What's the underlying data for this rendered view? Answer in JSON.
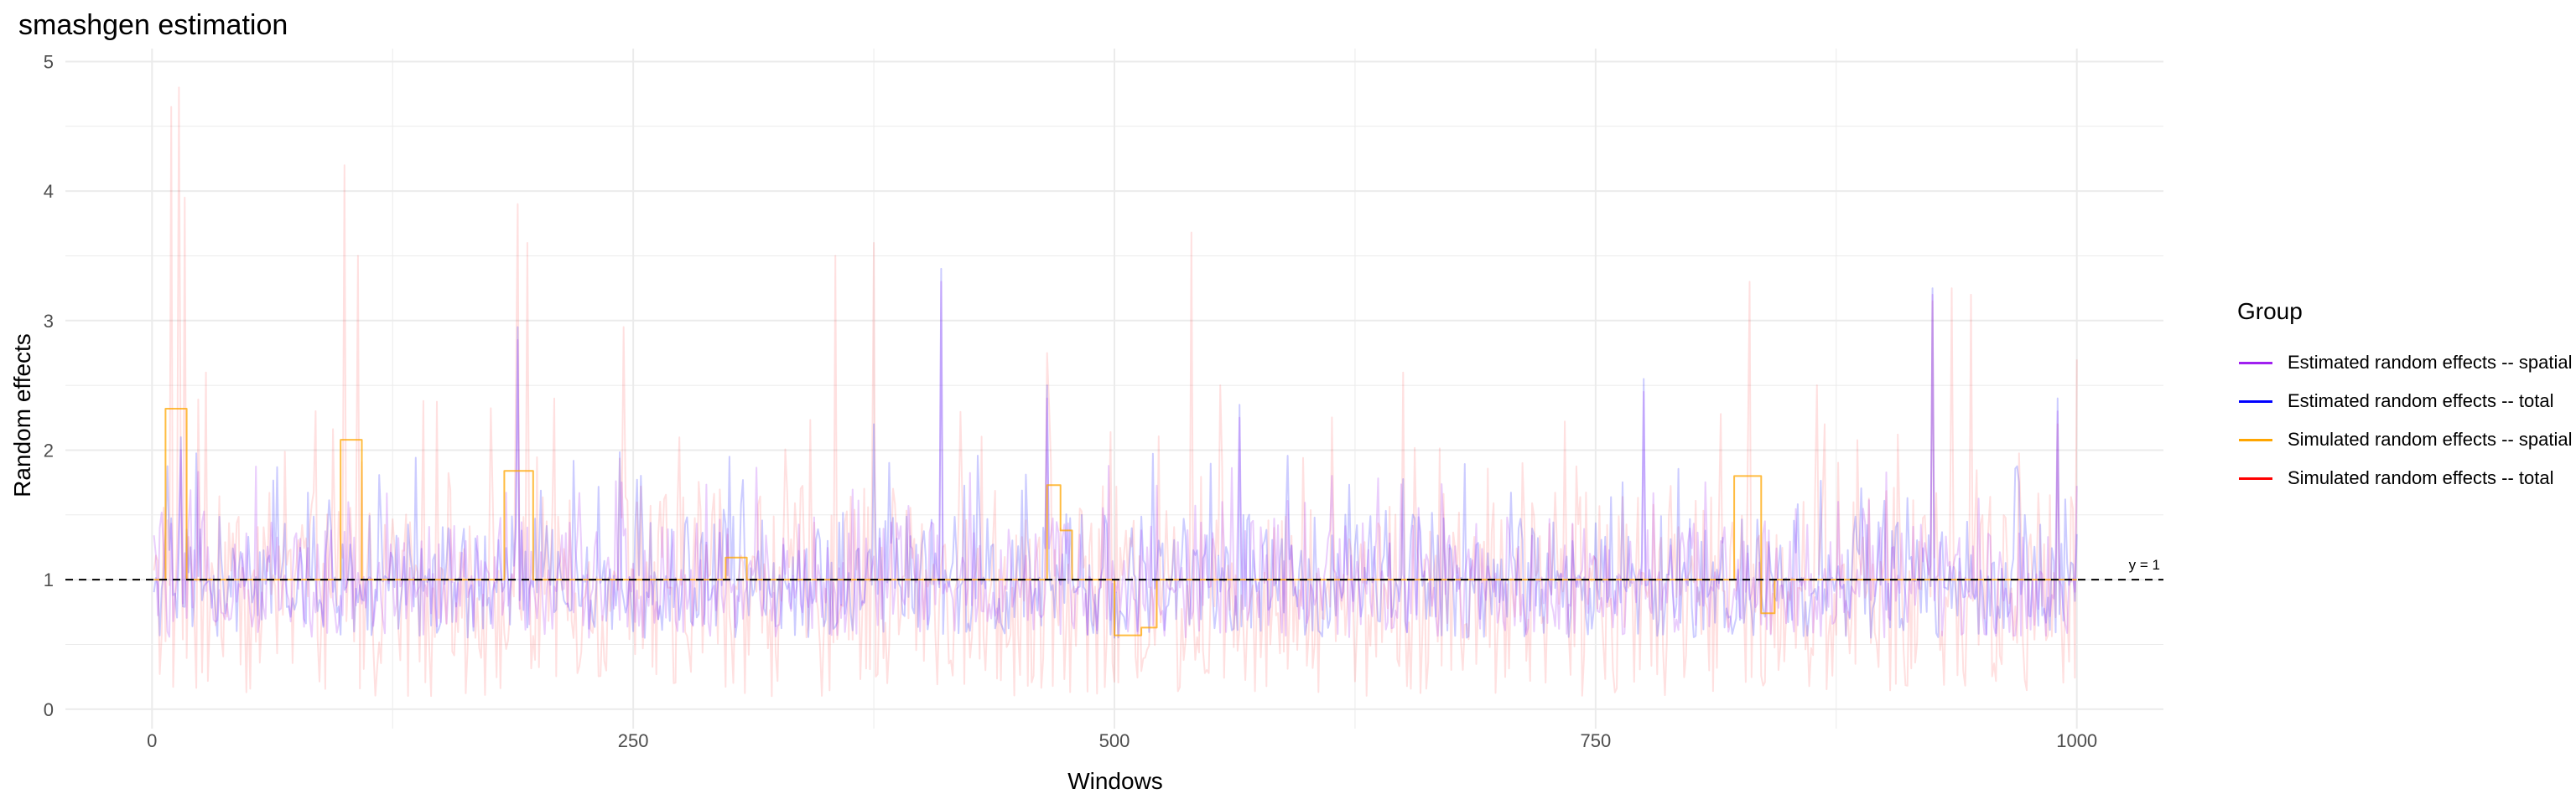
{
  "chart_data": {
    "type": "line",
    "title": "smashgen estimation",
    "xlabel": "Windows",
    "ylabel": "Random effects",
    "xlim": [
      -45,
      1045
    ],
    "ylim": [
      -0.15,
      5.1
    ],
    "x_ticks": [
      0,
      250,
      500,
      750,
      1000
    ],
    "y_ticks": [
      0,
      1,
      2,
      3,
      4,
      5
    ],
    "grid": true,
    "legend": {
      "title": "Group",
      "position": "right"
    },
    "reference_line": {
      "y": 1,
      "label": "y = 1",
      "style": "dashed",
      "color": "#000000"
    },
    "n_windows": 1000,
    "series": [
      {
        "name": "Simulated random effects -- total",
        "color": "#FF0000",
        "opacity": 0.12,
        "spikes": [
          [
            10,
            4.65
          ],
          [
            14,
            4.8
          ],
          [
            17,
            3.95
          ],
          [
            28,
            2.6
          ],
          [
            100,
            4.2
          ],
          [
            107,
            3.5
          ],
          [
            190,
            3.9
          ],
          [
            195,
            3.6
          ],
          [
            245,
            2.95
          ],
          [
            355,
            3.5
          ],
          [
            375,
            3.6
          ],
          [
            465,
            2.75
          ],
          [
            540,
            3.68
          ],
          [
            555,
            2.5
          ],
          [
            650,
            2.6
          ],
          [
            830,
            3.3
          ],
          [
            865,
            2.5
          ],
          [
            925,
            3.15
          ],
          [
            935,
            3.25
          ],
          [
            945,
            3.2
          ],
          [
            990,
            2.2
          ],
          [
            1000,
            2.7
          ]
        ],
        "typical_range": [
          0.1,
          2.4
        ]
      },
      {
        "name": "Estimated random effects -- total",
        "color": "#0000FF",
        "opacity": 0.2,
        "spikes": [
          [
            15,
            2.1
          ],
          [
            190,
            2.95
          ],
          [
            300,
            1.95
          ],
          [
            375,
            2.2
          ],
          [
            410,
            3.4
          ],
          [
            465,
            2.5
          ],
          [
            565,
            2.35
          ],
          [
            775,
            2.55
          ],
          [
            925,
            3.25
          ],
          [
            990,
            2.4
          ]
        ],
        "typical_range": [
          0.55,
          2.0
        ]
      },
      {
        "name": "Estimated random effects -- spatial",
        "color": "#A020F0",
        "opacity": 0.22,
        "spikes": [
          [
            15,
            2.0
          ],
          [
            190,
            2.85
          ],
          [
            410,
            3.3
          ],
          [
            465,
            2.4
          ],
          [
            565,
            2.25
          ],
          [
            775,
            2.45
          ],
          [
            925,
            3.2
          ],
          [
            990,
            2.3
          ]
        ],
        "typical_range": [
          0.55,
          1.9
        ]
      },
      {
        "name": "Simulated random effects -- spatial",
        "color": "#FFA500",
        "opacity": 0.75,
        "segments": [
          {
            "from": 1,
            "to": 7,
            "value": 1.0
          },
          {
            "from": 7,
            "to": 18,
            "value": 2.32
          },
          {
            "from": 18,
            "to": 98,
            "value": 1.0
          },
          {
            "from": 98,
            "to": 109,
            "value": 2.08
          },
          {
            "from": 109,
            "to": 183,
            "value": 1.0
          },
          {
            "from": 183,
            "to": 198,
            "value": 1.84
          },
          {
            "from": 198,
            "to": 298,
            "value": 1.0
          },
          {
            "from": 298,
            "to": 309,
            "value": 1.17
          },
          {
            "from": 309,
            "to": 465,
            "value": 1.0
          },
          {
            "from": 465,
            "to": 472,
            "value": 1.73
          },
          {
            "from": 472,
            "to": 478,
            "value": 1.38
          },
          {
            "from": 478,
            "to": 500,
            "value": 1.0
          },
          {
            "from": 500,
            "to": 514,
            "value": 0.57
          },
          {
            "from": 514,
            "to": 522,
            "value": 0.63
          },
          {
            "from": 522,
            "to": 822,
            "value": 1.0
          },
          {
            "from": 822,
            "to": 836,
            "value": 1.8
          },
          {
            "from": 836,
            "to": 843,
            "value": 0.74
          },
          {
            "from": 843,
            "to": 1000,
            "value": 1.0
          }
        ]
      }
    ],
    "legend_items": [
      {
        "label": "Estimated random effects -- spatial",
        "color": "#A020F0"
      },
      {
        "label": "Estimated random effects -- total",
        "color": "#0000FF"
      },
      {
        "label": "Simulated random effects -- spatial",
        "color": "#FFA500"
      },
      {
        "label": "Simulated random effects -- total",
        "color": "#FF0000"
      }
    ]
  }
}
